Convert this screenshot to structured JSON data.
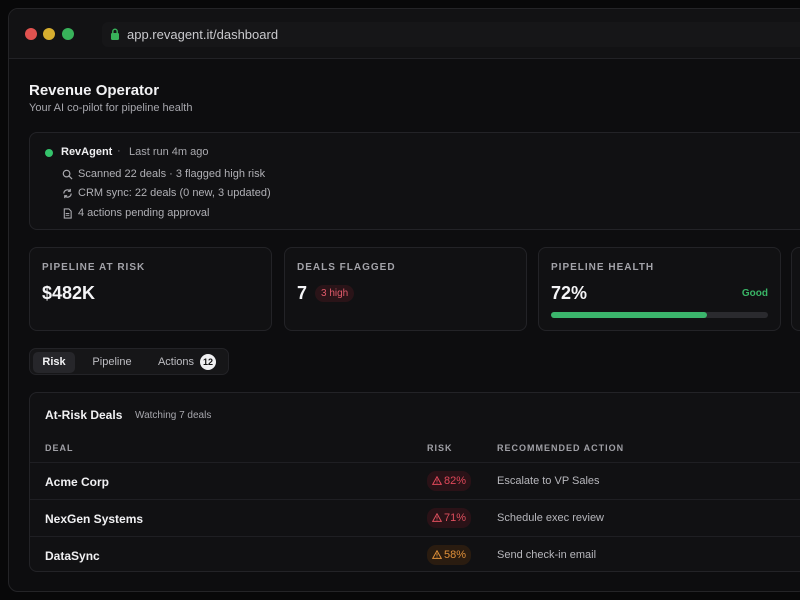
{
  "browser": {
    "url": "app.revagent.it/dashboard"
  },
  "header": {
    "title": "Revenue Operator",
    "subtitle": "Your AI co-pilot for pipeline health"
  },
  "agent": {
    "name": "RevAgent",
    "separator": "·",
    "last_run": "Last run 4m ago",
    "lines": [
      {
        "icon": "search-icon",
        "text": "Scanned 22 deals · 3 flagged high risk"
      },
      {
        "icon": "sync-icon",
        "text": "CRM sync: 22 deals (0 new, 3 updated)"
      },
      {
        "icon": "document-icon",
        "text": "4 actions pending approval"
      }
    ],
    "status_color": "#34c36b"
  },
  "stats": {
    "pipeline_at_risk": {
      "label": "PIPELINE AT RISK",
      "value": "$482K"
    },
    "deals_flagged": {
      "label": "DEALS FLAGGED",
      "value": "7",
      "badge": "3 high"
    },
    "pipeline_health": {
      "label": "PIPELINE HEALTH",
      "value": "72%",
      "status": "Good",
      "progress": 0.72
    }
  },
  "tabs": [
    {
      "label": "Risk",
      "active": true
    },
    {
      "label": "Pipeline",
      "active": false
    },
    {
      "label": "Actions",
      "active": false,
      "count": "12"
    }
  ],
  "deals": {
    "title": "At-Risk Deals",
    "subtitle": "Watching 7 deals",
    "columns": [
      "DEAL",
      "RISK",
      "RECOMMENDED ACTION"
    ],
    "rows": [
      {
        "deal": "Acme Corp",
        "risk": "82%",
        "action": "Escalate to VP Sales",
        "risk_color": "#e0485a",
        "risk_bg": "#2a1217"
      },
      {
        "deal": "NexGen Systems",
        "risk": "71%",
        "action": "Schedule exec review",
        "risk_color": "#de4f5e",
        "risk_bg": "#2a1217"
      },
      {
        "deal": "DataSync",
        "risk": "58%",
        "action": "Send check-in email",
        "risk_color": "#e0903a",
        "risk_bg": "#2a1c10"
      }
    ]
  }
}
